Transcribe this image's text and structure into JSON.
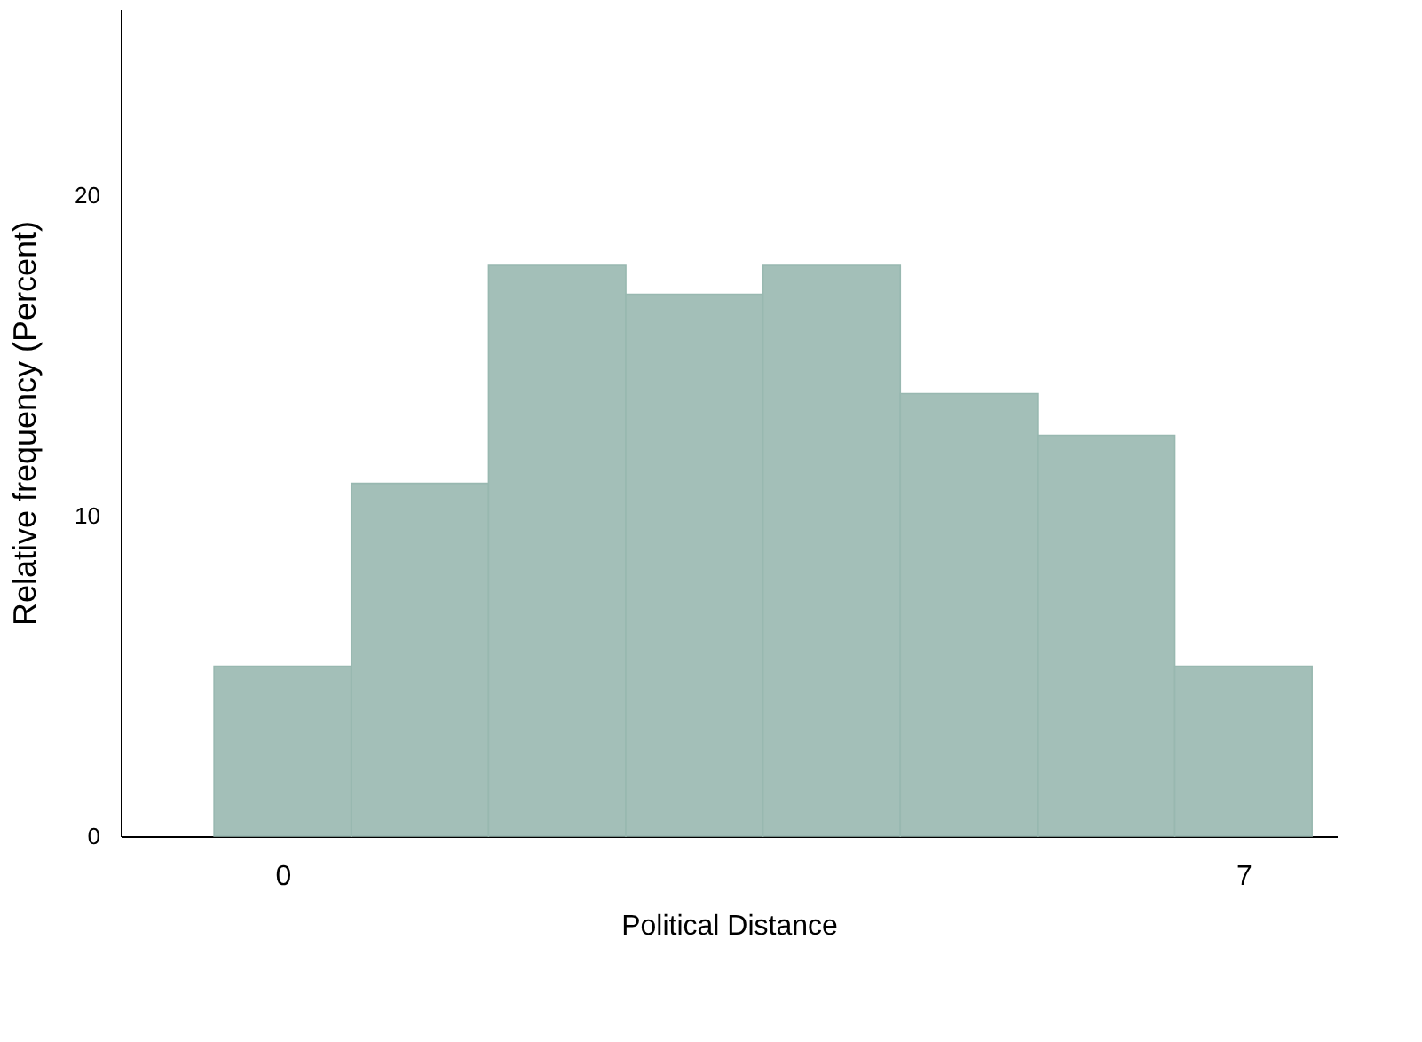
{
  "chart_data": {
    "type": "histogram",
    "xlabel": "Political Distance",
    "ylabel": "Relative frequency (Percent)",
    "bins": [
      -0.5,
      0.5,
      1.5,
      2.5,
      3.5,
      4.5,
      5.5,
      6.5,
      7.5
    ],
    "values": [
      5.3,
      11.0,
      17.8,
      16.9,
      17.8,
      13.8,
      12.5,
      5.3
    ],
    "color": "#a3bfb8",
    "xlim": [
      -1.18,
      7.68
    ],
    "xticks": [
      0,
      7
    ],
    "ylim": [
      0,
      25.8
    ],
    "yticks": [
      0,
      10,
      20
    ],
    "grid": false
  }
}
